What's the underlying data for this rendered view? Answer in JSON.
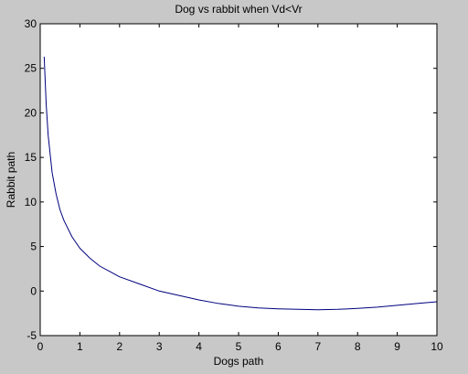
{
  "colors": {
    "figure_background": "#c8c8c8",
    "axes_background": "#ffffff",
    "axes_edge": "#000000",
    "curve": "#00007f"
  },
  "chart_data": {
    "type": "line",
    "title": "Dog vs rabbit when Vd<Vr",
    "xlabel": "Dogs path",
    "ylabel": "Rabbit path",
    "xlim": [
      0,
      10
    ],
    "ylim": [
      -5,
      30
    ],
    "xticks": [
      "0",
      "1",
      "2",
      "3",
      "4",
      "5",
      "6",
      "7",
      "8",
      "9",
      "10"
    ],
    "yticks": [
      "-5",
      "0",
      "5",
      "10",
      "15",
      "20",
      "25",
      "30"
    ],
    "grid": false,
    "legend": "none",
    "series": [
      {
        "color": "#00007f",
        "x": [
          0.1,
          0.15,
          0.2,
          0.3,
          0.4,
          0.5,
          0.6,
          0.8,
          1.0,
          1.25,
          1.5,
          1.75,
          2.0,
          2.5,
          3.0,
          3.5,
          4.0,
          4.5,
          5.0,
          5.5,
          6.0,
          6.5,
          7.0,
          7.5,
          8.0,
          8.5,
          9.0,
          9.5,
          10.0
        ],
        "y": [
          26.3,
          21.0,
          17.5,
          13.3,
          10.9,
          9.1,
          7.9,
          6.1,
          4.8,
          3.7,
          2.8,
          2.2,
          1.6,
          0.8,
          0.0,
          -0.5,
          -1.0,
          -1.4,
          -1.7,
          -1.9,
          -2.0,
          -2.05,
          -2.1,
          -2.05,
          -1.95,
          -1.8,
          -1.6,
          -1.4,
          -1.2
        ]
      }
    ]
  }
}
